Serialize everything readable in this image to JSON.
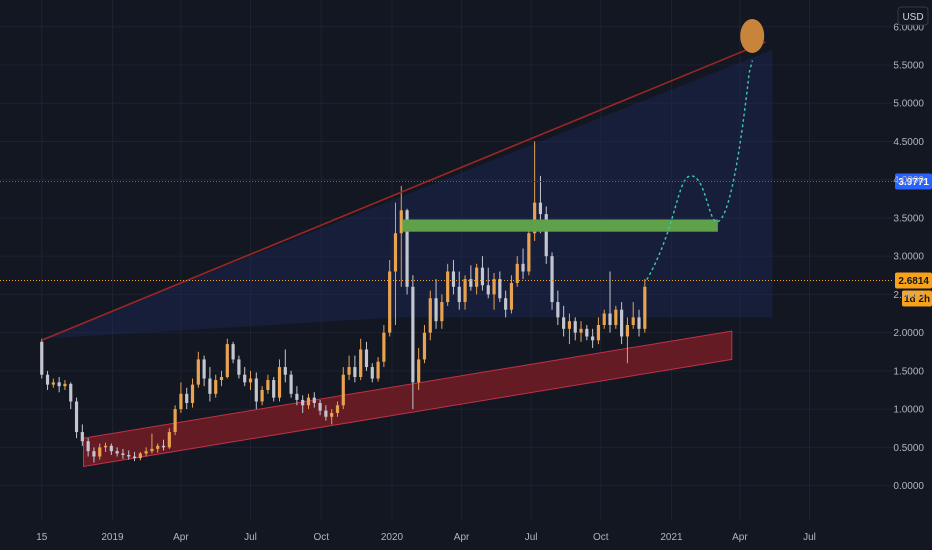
{
  "chart_data": {
    "type": "candlestick",
    "currency": "USD",
    "y_ticks": [
      "6.0000",
      "5.5000",
      "5.0000",
      "4.5000",
      "4.0000",
      "3.5000",
      "3.0000",
      "2.5000",
      "2.0000",
      "1.5000",
      "1.0000",
      "0.5000",
      "0.0000"
    ],
    "y_tick_values": [
      6.0,
      5.5,
      5.0,
      4.5,
      4.0,
      3.5,
      3.0,
      2.5,
      2.0,
      1.5,
      1.0,
      0.5,
      0.0
    ],
    "ylim": [
      -0.45,
      6.35
    ],
    "x_ticks": [
      {
        "label": "15",
        "t": 0
      },
      {
        "label": "2019",
        "t": 3.05
      },
      {
        "label": "Apr",
        "t": 6.0
      },
      {
        "label": "Jul",
        "t": 9.0
      },
      {
        "label": "Oct",
        "t": 12.05
      },
      {
        "label": "2020",
        "t": 15.1
      },
      {
        "label": "Apr",
        "t": 18.1
      },
      {
        "label": "Jul",
        "t": 21.1
      },
      {
        "label": "Oct",
        "t": 24.1
      },
      {
        "label": "2021",
        "t": 27.15
      },
      {
        "label": "Apr",
        "t": 30.1
      },
      {
        "label": "Jul",
        "t": 33.1
      }
    ],
    "xlim": [
      -1.8,
      36.7
    ],
    "price_markers": [
      {
        "label": "3.9771",
        "value": 3.9771,
        "color": "#2962ff"
      },
      {
        "label": "2.6814",
        "value": 2.6814,
        "color": "#f7a21b"
      }
    ],
    "countdown": "1d 2h",
    "candles": [
      [
        0.0,
        1.88,
        1.92,
        1.4,
        1.45
      ],
      [
        0.25,
        1.45,
        1.5,
        1.25,
        1.32
      ],
      [
        0.5,
        1.32,
        1.4,
        1.28,
        1.35
      ],
      [
        0.75,
        1.35,
        1.42,
        1.22,
        1.3
      ],
      [
        1.0,
        1.3,
        1.38,
        1.25,
        1.33
      ],
      [
        1.25,
        1.33,
        1.35,
        1.0,
        1.1
      ],
      [
        1.5,
        1.1,
        1.15,
        0.62,
        0.7
      ],
      [
        1.75,
        0.7,
        0.8,
        0.52,
        0.58
      ],
      [
        2.0,
        0.58,
        0.62,
        0.38,
        0.45
      ],
      [
        2.25,
        0.45,
        0.5,
        0.3,
        0.38
      ],
      [
        2.5,
        0.38,
        0.55,
        0.34,
        0.5
      ],
      [
        2.75,
        0.5,
        0.56,
        0.44,
        0.52
      ],
      [
        3.0,
        0.52,
        0.55,
        0.4,
        0.45
      ],
      [
        3.25,
        0.45,
        0.5,
        0.38,
        0.42
      ],
      [
        3.5,
        0.42,
        0.48,
        0.35,
        0.4
      ],
      [
        3.75,
        0.4,
        0.46,
        0.34,
        0.38
      ],
      [
        4.0,
        0.38,
        0.44,
        0.32,
        0.36
      ],
      [
        4.25,
        0.36,
        0.44,
        0.33,
        0.42
      ],
      [
        4.5,
        0.42,
        0.5,
        0.38,
        0.45
      ],
      [
        4.75,
        0.45,
        0.68,
        0.42,
        0.48
      ],
      [
        5.0,
        0.48,
        0.55,
        0.43,
        0.52
      ],
      [
        5.25,
        0.52,
        0.6,
        0.46,
        0.5
      ],
      [
        5.5,
        0.5,
        0.75,
        0.48,
        0.7
      ],
      [
        5.75,
        0.7,
        1.05,
        0.66,
        1.0
      ],
      [
        6.0,
        1.0,
        1.35,
        0.95,
        1.2
      ],
      [
        6.25,
        1.2,
        1.28,
        1.0,
        1.08
      ],
      [
        6.5,
        1.08,
        1.4,
        1.02,
        1.32
      ],
      [
        6.75,
        1.32,
        1.75,
        1.28,
        1.65
      ],
      [
        7.0,
        1.65,
        1.7,
        1.3,
        1.4
      ],
      [
        7.25,
        1.4,
        1.55,
        1.1,
        1.2
      ],
      [
        7.5,
        1.2,
        1.45,
        1.15,
        1.38
      ],
      [
        7.75,
        1.38,
        1.5,
        1.3,
        1.42
      ],
      [
        8.0,
        1.42,
        1.92,
        1.4,
        1.85
      ],
      [
        8.25,
        1.85,
        1.88,
        1.6,
        1.65
      ],
      [
        8.5,
        1.65,
        1.7,
        1.4,
        1.45
      ],
      [
        8.75,
        1.45,
        1.55,
        1.3,
        1.35
      ],
      [
        9.0,
        1.35,
        1.5,
        1.25,
        1.4
      ],
      [
        9.25,
        1.4,
        1.48,
        1.0,
        1.1
      ],
      [
        9.5,
        1.1,
        1.3,
        1.05,
        1.25
      ],
      [
        9.75,
        1.25,
        1.45,
        1.2,
        1.38
      ],
      [
        10.0,
        1.38,
        1.42,
        1.1,
        1.15
      ],
      [
        10.25,
        1.15,
        1.65,
        1.1,
        1.55
      ],
      [
        10.5,
        1.55,
        1.78,
        1.35,
        1.45
      ],
      [
        10.75,
        1.45,
        1.5,
        1.15,
        1.2
      ],
      [
        11.0,
        1.2,
        1.3,
        1.05,
        1.12
      ],
      [
        11.25,
        1.12,
        1.18,
        0.95,
        1.05
      ],
      [
        11.5,
        1.05,
        1.2,
        1.0,
        1.15
      ],
      [
        11.75,
        1.15,
        1.22,
        1.02,
        1.08
      ],
      [
        12.0,
        1.08,
        1.12,
        0.92,
        0.98
      ],
      [
        12.25,
        0.98,
        1.05,
        0.85,
        0.9
      ],
      [
        12.5,
        0.9,
        1.0,
        0.8,
        0.95
      ],
      [
        12.75,
        0.95,
        1.1,
        0.9,
        1.05
      ],
      [
        13.0,
        1.05,
        1.55,
        1.0,
        1.45
      ],
      [
        13.25,
        1.45,
        1.7,
        1.38,
        1.55
      ],
      [
        13.5,
        1.55,
        1.7,
        1.35,
        1.42
      ],
      [
        13.75,
        1.42,
        1.92,
        1.38,
        1.78
      ],
      [
        14.0,
        1.78,
        1.88,
        1.5,
        1.55
      ],
      [
        14.25,
        1.55,
        1.6,
        1.35,
        1.4
      ],
      [
        14.5,
        1.4,
        1.68,
        1.36,
        1.62
      ],
      [
        14.75,
        1.62,
        2.1,
        1.55,
        2.0
      ],
      [
        15.0,
        2.0,
        2.95,
        1.95,
        2.8
      ],
      [
        15.25,
        2.8,
        3.7,
        2.1,
        3.3
      ],
      [
        15.5,
        3.3,
        3.92,
        2.6,
        3.6
      ],
      [
        15.75,
        3.6,
        3.62,
        2.5,
        2.6
      ],
      [
        16.0,
        2.6,
        2.75,
        1.0,
        1.35
      ],
      [
        16.25,
        1.35,
        1.8,
        1.25,
        1.65
      ],
      [
        16.5,
        1.65,
        2.1,
        1.6,
        2.0
      ],
      [
        16.75,
        2.0,
        2.55,
        1.9,
        2.45
      ],
      [
        17.0,
        2.45,
        2.7,
        2.05,
        2.15
      ],
      [
        17.25,
        2.15,
        2.5,
        2.05,
        2.4
      ],
      [
        17.5,
        2.4,
        2.9,
        2.35,
        2.8
      ],
      [
        17.75,
        2.8,
        2.95,
        2.5,
        2.6
      ],
      [
        18.0,
        2.6,
        2.8,
        2.3,
        2.4
      ],
      [
        18.25,
        2.4,
        2.75,
        2.3,
        2.7
      ],
      [
        18.5,
        2.7,
        2.88,
        2.55,
        2.6
      ],
      [
        18.75,
        2.6,
        2.9,
        2.5,
        2.85
      ],
      [
        19.0,
        2.85,
        3.0,
        2.55,
        2.62
      ],
      [
        19.25,
        2.62,
        2.85,
        2.45,
        2.5
      ],
      [
        19.5,
        2.5,
        2.78,
        2.3,
        2.7
      ],
      [
        19.75,
        2.7,
        2.8,
        2.4,
        2.45
      ],
      [
        20.0,
        2.45,
        2.55,
        2.2,
        2.3
      ],
      [
        20.25,
        2.3,
        2.75,
        2.25,
        2.65
      ],
      [
        20.5,
        2.65,
        3.0,
        2.6,
        2.9
      ],
      [
        20.75,
        2.9,
        3.1,
        2.7,
        2.8
      ],
      [
        21.0,
        2.8,
        3.4,
        2.75,
        3.3
      ],
      [
        21.25,
        3.3,
        4.5,
        3.2,
        3.7
      ],
      [
        21.5,
        3.7,
        4.05,
        3.3,
        3.55
      ],
      [
        21.75,
        3.55,
        3.65,
        2.9,
        3.0
      ],
      [
        22.0,
        3.0,
        3.05,
        2.3,
        2.4
      ],
      [
        22.25,
        2.4,
        2.55,
        2.1,
        2.2
      ],
      [
        22.5,
        2.2,
        2.35,
        1.95,
        2.05
      ],
      [
        22.75,
        2.05,
        2.25,
        1.85,
        2.15
      ],
      [
        23.0,
        2.15,
        2.2,
        1.9,
        2.0
      ],
      [
        23.25,
        2.0,
        2.15,
        1.88,
        2.05
      ],
      [
        23.5,
        2.05,
        2.1,
        1.9,
        1.95
      ],
      [
        23.75,
        1.95,
        2.05,
        1.8,
        1.9
      ],
      [
        24.0,
        1.9,
        2.2,
        1.85,
        2.1
      ],
      [
        24.25,
        2.1,
        2.3,
        2.05,
        2.25
      ],
      [
        24.5,
        2.25,
        2.8,
        2.0,
        2.1
      ],
      [
        24.75,
        2.1,
        2.35,
        2.05,
        2.3
      ],
      [
        25.0,
        2.3,
        2.4,
        1.85,
        1.95
      ],
      [
        25.25,
        1.95,
        2.2,
        1.6,
        2.1
      ],
      [
        25.5,
        2.1,
        2.4,
        2.05,
        2.2
      ],
      [
        25.75,
        2.2,
        2.3,
        1.95,
        2.05
      ],
      [
        26.0,
        2.05,
        2.7,
        2.0,
        2.6
      ]
    ],
    "annotations": {
      "resistance_line": {
        "from": [
          0.0,
          1.9
        ],
        "to": [
          31.2,
          5.8
        ]
      },
      "support_channel": [
        [
          1.8,
          0.25
        ],
        [
          29.75,
          1.65
        ],
        [
          29.75,
          2.02
        ],
        [
          1.8,
          0.62
        ]
      ],
      "resistance_zone": {
        "x0": 15.55,
        "x1": 29.15,
        "y0": 3.32,
        "y1": 3.48
      },
      "target_circle": {
        "x": 30.63,
        "y": 5.88
      },
      "projection_path": [
        [
          26.1,
          2.7
        ],
        [
          27.4,
          3.4
        ],
        [
          28.0,
          4.05
        ],
        [
          29.1,
          3.45
        ],
        [
          30.0,
          4.05
        ],
        [
          30.5,
          5.4
        ],
        [
          30.63,
          5.55
        ]
      ],
      "shading_fan": [
        [
          0.0,
          1.92
        ],
        [
          31.5,
          5.7
        ],
        [
          31.5,
          2.2
        ],
        [
          15.3,
          2.2
        ]
      ]
    }
  },
  "colors": {
    "background": "#131722",
    "grid": "#1e2231",
    "up_candle": "#e9a24f",
    "down_candle": "#c3c6d0",
    "resistance_line": "#9b2626",
    "support_fill": "#7b1c24",
    "resistance_zone": "#5fa14a",
    "target_circle": "#c8843a",
    "projection": "#3ec4a4"
  }
}
